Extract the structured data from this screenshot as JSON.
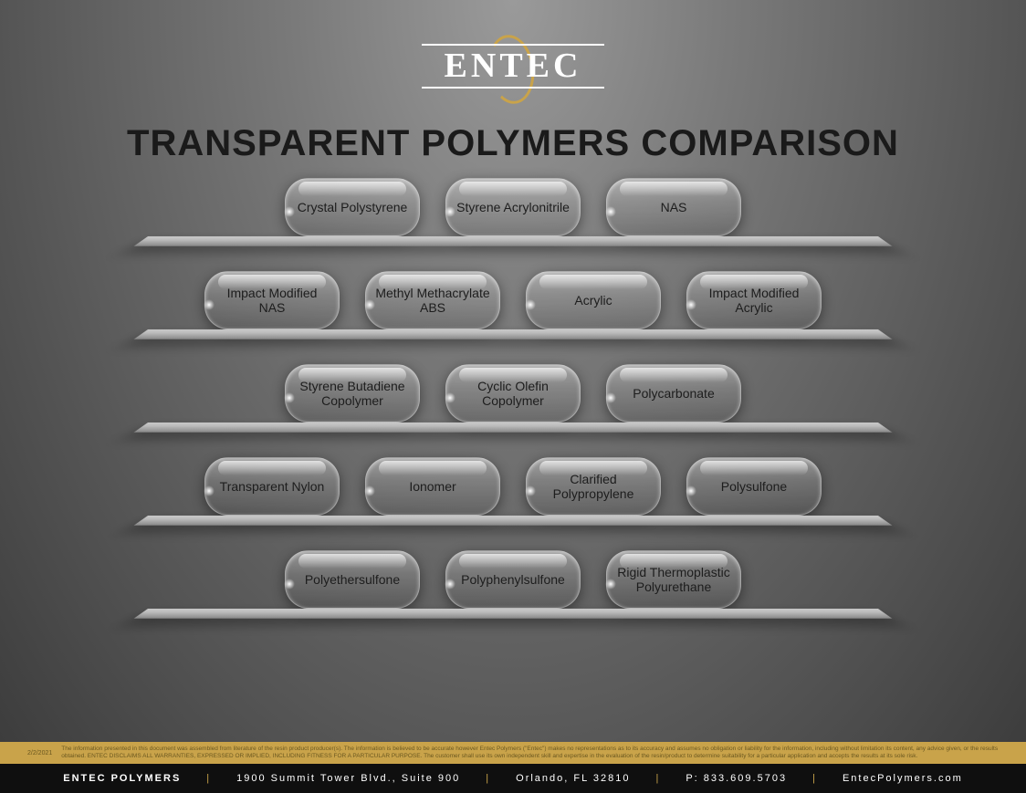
{
  "logo": {
    "text": "ENTEC"
  },
  "title": "TRANSPARENT POLYMERS COMPARISON",
  "colors": {
    "accent_gold": "#c9a34a",
    "footer_bg": "#0f0f0f",
    "title_color": "#1a1a1a",
    "logo_text": "#ffffff"
  },
  "shelves": [
    {
      "items": [
        "Crystal Polystyrene",
        "Styrene Acrylonitrile",
        "NAS"
      ]
    },
    {
      "items": [
        "Impact Modified NAS",
        "Methyl Methacrylate ABS",
        "Acrylic",
        "Impact Modified Acrylic"
      ]
    },
    {
      "items": [
        "Styrene Butadiene Copolymer",
        "Cyclic Olefin Copolymer",
        "Polycarbonate"
      ]
    },
    {
      "items": [
        "Transparent Nylon",
        "Ionomer",
        "Clarified Polypropylene",
        "Polysulfone"
      ]
    },
    {
      "items": [
        "Polyethersulfone",
        "Polyphenylsulfone",
        "Rigid Thermoplastic Polyurethane"
      ]
    }
  ],
  "disclaimer": {
    "date": "2/2/2021",
    "text": "The information presented in this document was assembled from literature of the resin product producer(s). The information is believed to be accurate however Entec Polymers (\"Entec\") makes no representations as to its accuracy and assumes no obligation or liability for the information, including without limitation its content, any advice given, or the results obtained. ENTEC DISCLAIMS ALL WARRANTIES, EXPRESSED OR IMPLIED, INCLUDING FITNESS FOR A PARTICULAR PURPOSE. The customer shall use its own independent skill and expertise in the evaluation of the resin/product to determine suitability for a particular application and accepts the results at its sole risk."
  },
  "footer": {
    "company": "ENTEC POLYMERS",
    "address": "1900 Summit Tower Blvd., Suite 900",
    "city": "Orlando, FL 32810",
    "phone": "P: 833.609.5703",
    "site": "EntecPolymers.com"
  }
}
